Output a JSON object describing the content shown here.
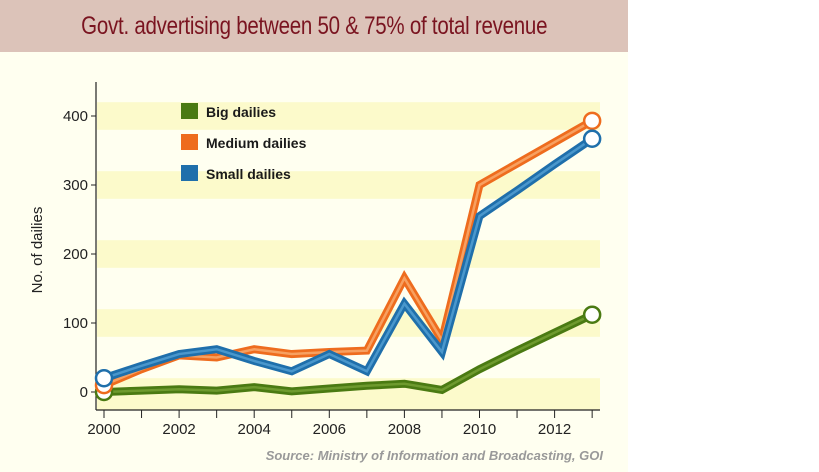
{
  "chart_data": {
    "type": "line",
    "title": "Govt. advertising between 50 & 75% of total revenue",
    "ylabel": "No. of dailies",
    "xlabel": "",
    "source": "Source: Ministry of Information and Broadcasting, GOI",
    "x": [
      2000,
      2001,
      2002,
      2003,
      2004,
      2005,
      2006,
      2007,
      2008,
      2009,
      2010,
      2011,
      2012,
      2013
    ],
    "xticks": [
      "2000",
      "2002",
      "2004",
      "2006",
      "2008",
      "2010",
      "2012"
    ],
    "yticks": [
      "0",
      "100",
      "200",
      "300",
      "400"
    ],
    "xlim": [
      2000,
      2013
    ],
    "ylim": [
      0,
      400
    ],
    "legend_position": "top-left",
    "grid": "horizontal bands",
    "series": [
      {
        "name": "Big dailies",
        "color": "#4a7a12",
        "values": [
          0,
          2,
          4,
          2,
          7,
          1,
          5,
          9,
          12,
          3,
          33,
          60,
          86,
          112
        ]
      },
      {
        "name": "Medium dailies",
        "color": "#ee6c1e",
        "values": [
          10,
          33,
          53,
          50,
          62,
          55,
          58,
          60,
          165,
          75,
          300,
          331,
          362,
          393
        ]
      },
      {
        "name": "Small dailies",
        "color": "#1f6fab",
        "values": [
          20,
          38,
          55,
          62,
          45,
          30,
          55,
          30,
          128,
          58,
          255,
          292,
          330,
          367
        ]
      }
    ]
  }
}
